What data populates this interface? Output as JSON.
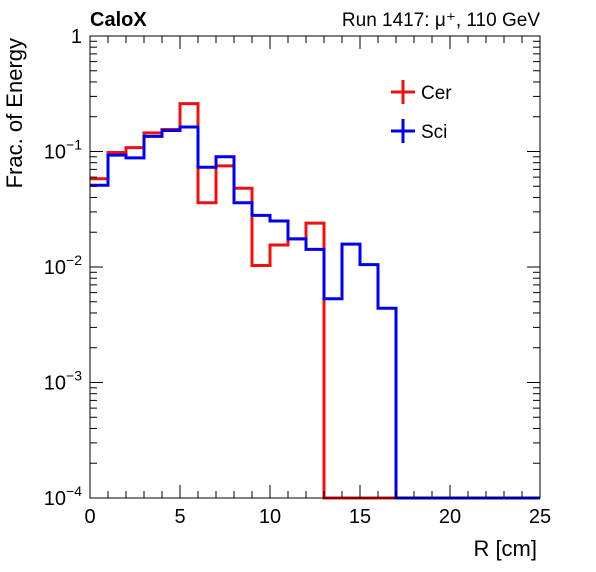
{
  "chart_data": {
    "type": "line",
    "title": "",
    "corner_left": "CaloX",
    "corner_right": "Run 1417: μ⁺, 110 GeV",
    "xlabel": "R [cm]",
    "ylabel": "Frac. of Energy",
    "xlim": [
      0,
      25
    ],
    "ylim": [
      0.0001,
      1
    ],
    "yscale": "log",
    "x_ticks": [
      "0",
      "5",
      "10",
      "15",
      "20",
      "25"
    ],
    "y_ticks": [
      {
        "base": "10",
        "exp": "−4",
        "value": 0.0001
      },
      {
        "base": "10",
        "exp": "−3",
        "value": 0.001
      },
      {
        "base": "10",
        "exp": "−2",
        "value": 0.01
      },
      {
        "base": "10",
        "exp": "−1",
        "value": 0.1
      },
      {
        "base": "1",
        "exp": "",
        "value": 1
      }
    ],
    "grid": false,
    "legend_position": "top-right",
    "bin_edges": [
      0,
      1,
      2,
      3,
      4,
      5,
      6,
      7,
      8,
      9,
      10,
      11,
      12,
      13,
      14,
      15,
      16,
      17,
      18,
      19,
      20,
      21,
      22,
      23,
      24,
      25
    ],
    "series": [
      {
        "name": "Cer",
        "color": "#ee1111",
        "values": [
          0.058,
          0.098,
          0.108,
          0.145,
          0.155,
          0.26,
          0.036,
          0.075,
          0.048,
          0.0103,
          0.0155,
          0.0175,
          0.024,
          0,
          0,
          0,
          0,
          0,
          0,
          0,
          0,
          0,
          0,
          0,
          0
        ]
      },
      {
        "name": "Sci",
        "color": "#0000ee",
        "values": [
          0.051,
          0.093,
          0.088,
          0.135,
          0.152,
          0.163,
          0.073,
          0.09,
          0.036,
          0.028,
          0.025,
          0.0175,
          0.0142,
          0.0053,
          0.0158,
          0.0105,
          0.0044,
          0,
          0,
          0,
          0,
          0,
          0,
          0,
          0
        ]
      }
    ]
  }
}
